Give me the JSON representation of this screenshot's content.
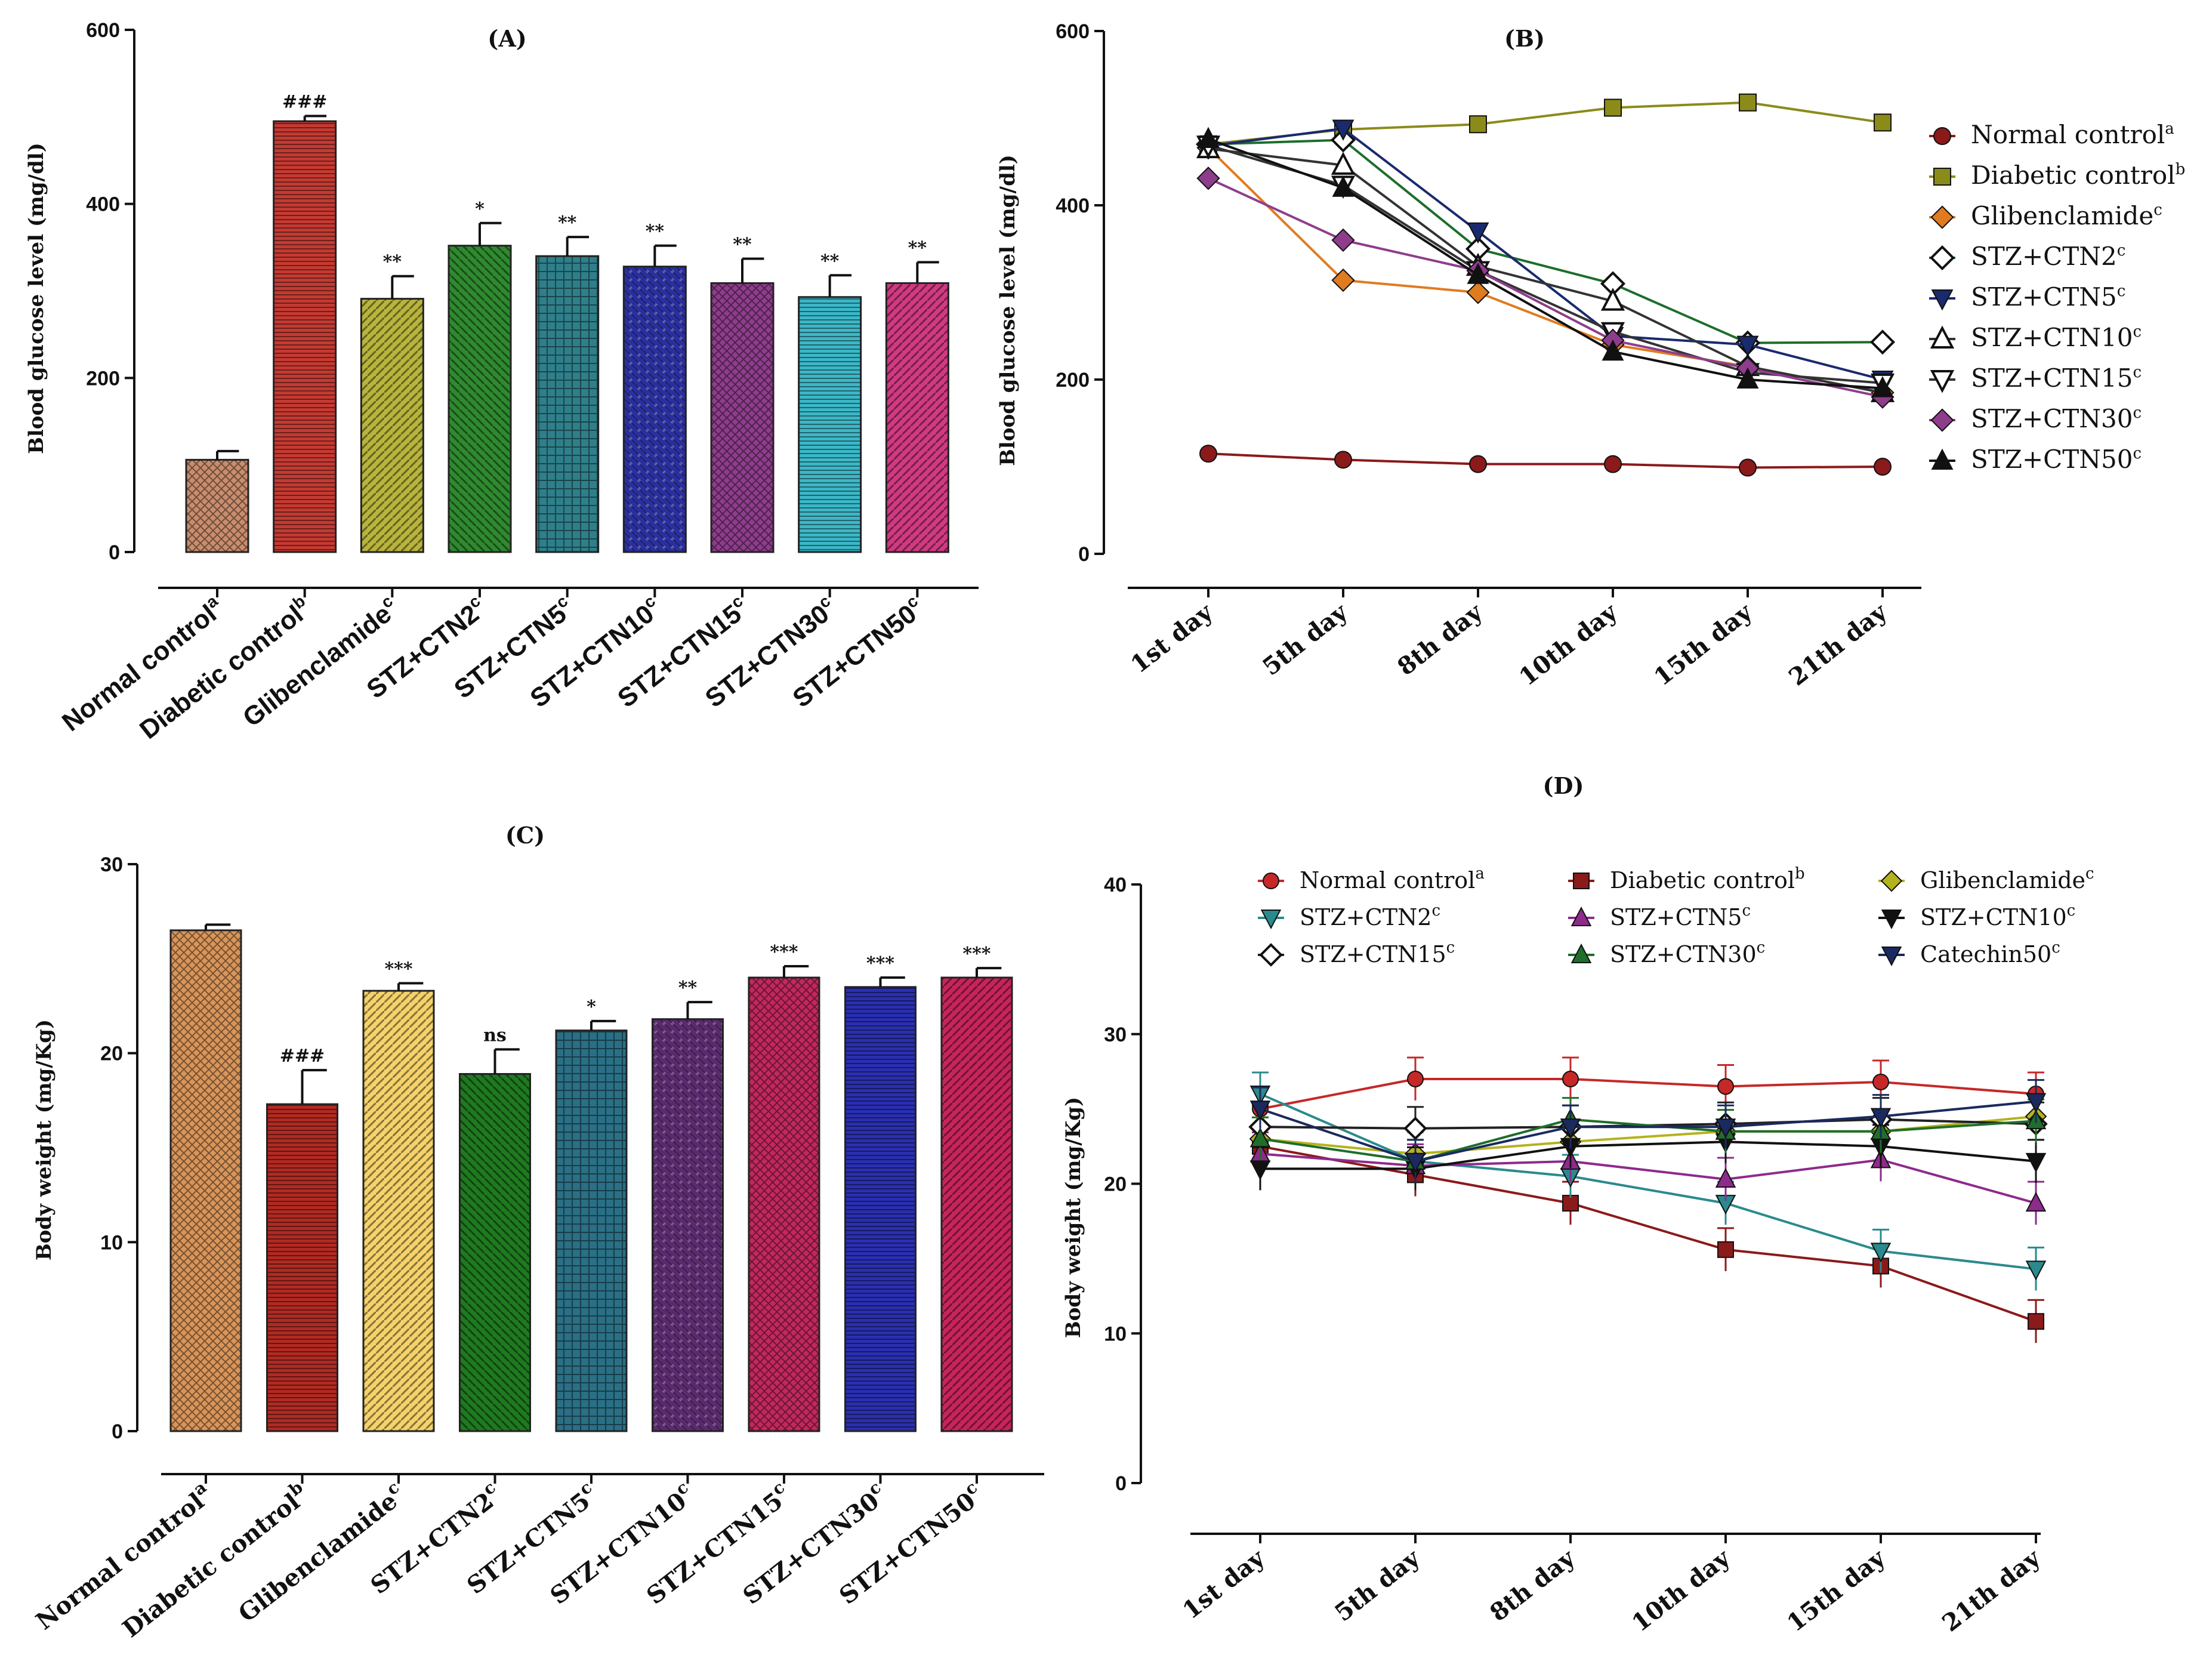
{
  "chart_data": [
    {
      "id": "A",
      "type": "bar",
      "title": "(A)",
      "ylabel": "Blood glucose level (mg/dl)",
      "xlabel": "",
      "ylim": [
        0,
        600
      ],
      "yticks": [
        "0",
        "200",
        "400",
        "600"
      ],
      "categories": [
        "Normal control",
        "Diabetic control",
        "Glibenclamide",
        "STZ+CTN2",
        "STZ+CTN5",
        "STZ+CTN10",
        "STZ+CTN15",
        "STZ+CTN30",
        "STZ+CTN50"
      ],
      "superscripts": [
        "a",
        "b",
        "c",
        "c",
        "c",
        "c",
        "c",
        "c",
        "c"
      ],
      "values": [
        106,
        495,
        291,
        352,
        340,
        328,
        309,
        293,
        309
      ],
      "errors": [
        10,
        6,
        26,
        26,
        22,
        24,
        28,
        25,
        24
      ],
      "significance": [
        "",
        "###",
        "**",
        "*",
        "**",
        "**",
        "**",
        "**",
        "**"
      ],
      "colors": [
        "#c98d6e",
        "#c43a32",
        "#b8b43c",
        "#2f8a2f",
        "#2f7f8a",
        "#2a2f9e",
        "#8e3d8c",
        "#3cb7c7",
        "#d13a82"
      ]
    },
    {
      "id": "B",
      "type": "line",
      "title": "(B)",
      "ylabel": "Blood glucose level (mg/dl)",
      "xlabel": "",
      "ylim": [
        0,
        600
      ],
      "yticks": [
        "0",
        "200",
        "400",
        "600"
      ],
      "x": [
        "1st day",
        "5th day",
        "8th day",
        "10th day",
        "15th day",
        "21th day"
      ],
      "series": [
        {
          "name": "Normal control",
          "sup": "a",
          "color": "#8b1a1a",
          "marker": "circle",
          "values": [
            115,
            108,
            103,
            103,
            99,
            100
          ]
        },
        {
          "name": "Diabetic control",
          "sup": "b",
          "color": "#8b8b1a",
          "marker": "square",
          "values": [
            470,
            487,
            493,
            512,
            518,
            495
          ]
        },
        {
          "name": "Glibenclamide",
          "sup": "c",
          "color": "#e07b20",
          "marker": "diamond",
          "values": [
            466,
            314,
            300,
            240,
            215,
            185
          ]
        },
        {
          "name": "STZ+CTN2",
          "sup": "c",
          "color": "#1d6e2a",
          "marker": "diamond-open",
          "values": [
            470,
            475,
            350,
            310,
            242,
            243
          ]
        },
        {
          "name": "STZ+CTN5",
          "sup": "c",
          "color": "#1a2a6e",
          "marker": "tri-down",
          "values": [
            468,
            488,
            370,
            250,
            240,
            200
          ]
        },
        {
          "name": "STZ+CTN10",
          "sup": "c",
          "color": "#333333",
          "marker": "tri-up-open",
          "values": [
            465,
            446,
            330,
            290,
            215,
            185
          ]
        },
        {
          "name": "STZ+CTN15",
          "sup": "c",
          "color": "#333333",
          "marker": "tri-down-open",
          "values": [
            469,
            423,
            325,
            255,
            208,
            196
          ]
        },
        {
          "name": "STZ+CTN30",
          "sup": "c",
          "color": "#8e3d8c",
          "marker": "diamond",
          "values": [
            431,
            360,
            325,
            245,
            213,
            180
          ]
        },
        {
          "name": "STZ+CTN50",
          "sup": "c",
          "color": "#111111",
          "marker": "tri-up",
          "values": [
            476,
            420,
            320,
            232,
            200,
            190
          ]
        }
      ]
    },
    {
      "id": "C",
      "type": "bar",
      "title": "(C)",
      "ylabel": "Body weight (mg/Kg)",
      "xlabel": "",
      "ylim": [
        0,
        30
      ],
      "yticks": [
        "0",
        "10",
        "20",
        "30"
      ],
      "categories": [
        "Normal control",
        "Diabetic control",
        "Glibenclamide",
        "STZ+CTN2",
        "STZ+CTN5",
        "STZ+CTN10",
        "STZ+CTN15",
        "STZ+CTN30",
        "STZ+CTN50"
      ],
      "superscripts": [
        "a",
        "b",
        "c",
        "c",
        "c",
        "c",
        "c",
        "c",
        "c"
      ],
      "values": [
        26.5,
        17.3,
        23.3,
        18.9,
        21.2,
        21.8,
        24.0,
        23.5,
        24.0
      ],
      "errors": [
        0.3,
        1.8,
        0.4,
        1.3,
        0.5,
        0.9,
        0.6,
        0.5,
        0.5
      ],
      "significance": [
        "",
        "###",
        "***",
        "ns",
        "*",
        "**",
        "***",
        "***",
        "***"
      ],
      "colors": [
        "#d9955a",
        "#b02a22",
        "#f5d26a",
        "#1f7a1f",
        "#2a6f85",
        "#5b2a6e",
        "#c2285e",
        "#2a2fb0",
        "#c8245c"
      ]
    },
    {
      "id": "D",
      "type": "line",
      "title": "(D)",
      "ylabel": "Body weight (mg/Kg)",
      "xlabel": "",
      "ylim": [
        0,
        40
      ],
      "yticks": [
        "0",
        "10",
        "20",
        "30",
        "40"
      ],
      "x": [
        "1st day",
        "5th day",
        "8th day",
        "10th day",
        "15th day",
        "21th day"
      ],
      "series": [
        {
          "name": "Normal control",
          "sup": "a",
          "color": "#c62828",
          "marker": "circle",
          "values": [
            25,
            27,
            27,
            26.5,
            26.8,
            26
          ]
        },
        {
          "name": "Diabetic control",
          "sup": "b",
          "color": "#8b1a1a",
          "marker": "square",
          "values": [
            22.5,
            20.6,
            18.7,
            15.6,
            14.5,
            10.8
          ]
        },
        {
          "name": "Glibenclamide",
          "sup": "c",
          "color": "#b5b21f",
          "marker": "diamond",
          "values": [
            23,
            22,
            22.8,
            23.5,
            23.5,
            24.5
          ]
        },
        {
          "name": "STZ+CTN2",
          "sup": "c",
          "color": "#2a8a8e",
          "marker": "tri-down",
          "values": [
            26,
            21.5,
            20.5,
            18.7,
            15.5,
            14.3
          ]
        },
        {
          "name": "STZ+CTN5",
          "sup": "c",
          "color": "#8e2a8c",
          "marker": "tri-up",
          "values": [
            22,
            21.2,
            21.5,
            20.3,
            21.6,
            18.7
          ]
        },
        {
          "name": "STZ+CTN10",
          "sup": "c",
          "color": "#111111",
          "marker": "tri-down",
          "values": [
            21,
            21,
            22.5,
            22.8,
            22.5,
            21.5
          ]
        },
        {
          "name": "STZ+CTN15",
          "sup": "c",
          "color": "#222222",
          "marker": "diamond-open",
          "values": [
            23.8,
            23.7,
            23.8,
            24,
            24.3,
            24
          ]
        },
        {
          "name": "STZ+CTN30",
          "sup": "c",
          "color": "#1f6e2a",
          "marker": "tri-up",
          "values": [
            23,
            21.5,
            24.3,
            23.5,
            23.5,
            24.2
          ]
        },
        {
          "name": "Catechin50",
          "sup": "c",
          "color": "#1a2a5e",
          "marker": "tri-down",
          "values": [
            25,
            21.5,
            23.8,
            23.8,
            24.5,
            25.5
          ]
        }
      ]
    }
  ]
}
